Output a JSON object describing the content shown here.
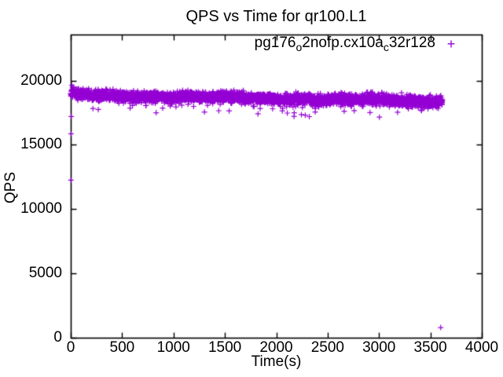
{
  "chart_data": {
    "type": "scatter",
    "title": "QPS vs Time for qr100.L1",
    "xlabel": "Time(s)",
    "ylabel": "QPS",
    "xlim": [
      0,
      4000
    ],
    "ylim": [
      0,
      23600
    ],
    "xticks": [
      0,
      500,
      1000,
      1500,
      2000,
      2500,
      3000,
      3500,
      4000
    ],
    "yticks": [
      0,
      5000,
      10000,
      15000,
      20000
    ],
    "grid": false,
    "border": true,
    "tick_direction": "in",
    "legend_position": "top-right-inside",
    "axis_color": "#000000",
    "series": [
      {
        "name": "pg176_o2nofp.cx10a_c32r128",
        "label_parts": [
          {
            "text": "pg176"
          },
          {
            "sub": "o"
          },
          {
            "text": "2nofp.cx10a"
          },
          {
            "sub": "c"
          },
          {
            "text": "32r128"
          }
        ],
        "marker": "plus",
        "marker_glyph": "+",
        "color": "#9400D3",
        "band": {
          "description": "dense steady-state throughput band, ~1 sample per second",
          "t_start": 0,
          "t_end": 3617,
          "points": 3600,
          "qps_mean_start": 18880,
          "qps_mean_end": 18400,
          "qps_spread": 700,
          "fringe_fraction": 0.08,
          "fringe_drop": 500,
          "tail_fraction": 0.012,
          "tail_drop_base": 300,
          "tail_drop_extra": 800,
          "warmup_t": 50,
          "warmup_boost": 6,
          "qps_min_clamp": 17100,
          "qps_max_clamp": 19750,
          "seed": 7
        },
        "outliers": [
          [
            2,
            12250
          ],
          [
            3,
            15850
          ],
          [
            5,
            17200
          ],
          [
            2245,
            17350
          ],
          [
            3004,
            17150
          ],
          [
            3600,
            790
          ]
        ]
      }
    ]
  }
}
